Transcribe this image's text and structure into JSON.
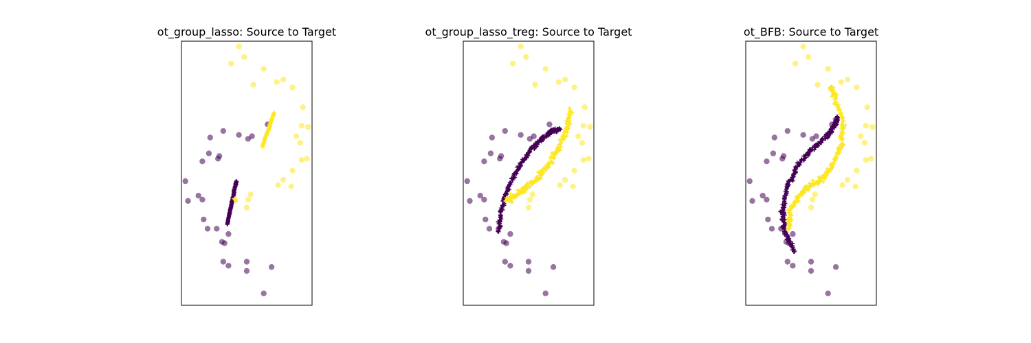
{
  "figure": {
    "background": "#ffffff",
    "point_colors": {
      "class_0": "#440154",
      "class_1": "#fde725"
    },
    "point_alpha": 0.55,
    "markers": {
      "target": "circle",
      "source_transported": "plus"
    }
  },
  "chart_data": [
    {
      "type": "scatter",
      "title": "ot_group_lasso: Source to Target",
      "xlim": [
        0,
        100
      ],
      "ylim": [
        0,
        200
      ],
      "grid": false,
      "target_points": {
        "class_1": [
          [
            44,
            196
          ],
          [
            48,
            188
          ],
          [
            38,
            183
          ],
          [
            63,
            179
          ],
          [
            55,
            167
          ],
          [
            73,
            169
          ],
          [
            78,
            171
          ],
          [
            85,
            165
          ],
          [
            93,
            150
          ],
          [
            92,
            136
          ],
          [
            97,
            135
          ],
          [
            88,
            128
          ],
          [
            91,
            123
          ],
          [
            96,
            111
          ],
          [
            92,
            110
          ],
          [
            85,
            102
          ],
          [
            78,
            95
          ],
          [
            84,
            90
          ],
          [
            74,
            91
          ],
          [
            53,
            84
          ],
          [
            51,
            80
          ],
          [
            50,
            74
          ]
        ],
        "class_0": [
          [
            66,
            137
          ],
          [
            32,
            132
          ],
          [
            44,
            129
          ],
          [
            51,
            126
          ],
          [
            54,
            128
          ],
          [
            22,
            127
          ],
          [
            21,
            115
          ],
          [
            29,
            113
          ],
          [
            16,
            109
          ],
          [
            28,
            111
          ],
          [
            3,
            94
          ],
          [
            13,
            83
          ],
          [
            5,
            79
          ],
          [
            16,
            80
          ],
          [
            17,
            65
          ],
          [
            20,
            58
          ],
          [
            27,
            58
          ],
          [
            36,
            54
          ],
          [
            31,
            48
          ],
          [
            33,
            47
          ],
          [
            32,
            33
          ],
          [
            36,
            30
          ],
          [
            50,
            33
          ],
          [
            69,
            29
          ],
          [
            50,
            26
          ],
          [
            63,
            9
          ]
        ]
      },
      "source_transported": {
        "class_1": [
          {
            "from": [
              62,
              120
            ],
            "to": [
              71,
              146
            ],
            "n": 60
          },
          {
            "from": [
              40,
              81
            ],
            "to": [
              42,
              79
            ],
            "n": 6
          }
        ],
        "class_0": [
          {
            "from": [
              35,
              61
            ],
            "to": [
              42,
              94
            ],
            "n": 80
          }
        ]
      }
    },
    {
      "type": "scatter",
      "title": "ot_group_lasso_treg: Source to Target",
      "xlim": [
        0,
        100
      ],
      "ylim": [
        0,
        200
      ],
      "grid": false,
      "target_points": {
        "class_1": [
          [
            44,
            196
          ],
          [
            48,
            188
          ],
          [
            38,
            183
          ],
          [
            63,
            179
          ],
          [
            55,
            167
          ],
          [
            73,
            169
          ],
          [
            78,
            171
          ],
          [
            85,
            165
          ],
          [
            93,
            150
          ],
          [
            92,
            136
          ],
          [
            97,
            135
          ],
          [
            88,
            128
          ],
          [
            91,
            123
          ],
          [
            96,
            111
          ],
          [
            92,
            110
          ],
          [
            85,
            102
          ],
          [
            78,
            95
          ],
          [
            84,
            90
          ],
          [
            74,
            91
          ],
          [
            53,
            84
          ],
          [
            51,
            80
          ],
          [
            50,
            74
          ]
        ],
        "class_0": [
          [
            66,
            137
          ],
          [
            32,
            132
          ],
          [
            44,
            129
          ],
          [
            51,
            126
          ],
          [
            54,
            128
          ],
          [
            22,
            127
          ],
          [
            21,
            115
          ],
          [
            29,
            113
          ],
          [
            16,
            109
          ],
          [
            28,
            111
          ],
          [
            3,
            94
          ],
          [
            13,
            83
          ],
          [
            5,
            79
          ],
          [
            16,
            80
          ],
          [
            17,
            65
          ],
          [
            20,
            58
          ],
          [
            27,
            58
          ],
          [
            36,
            54
          ],
          [
            31,
            48
          ],
          [
            33,
            47
          ],
          [
            32,
            33
          ],
          [
            36,
            30
          ],
          [
            50,
            33
          ],
          [
            69,
            29
          ],
          [
            50,
            26
          ],
          [
            63,
            9
          ]
        ]
      },
      "source_transported": {
        "class_1": [
          {
            "path": [
              [
                33,
                79
              ],
              [
                40,
                83
              ],
              [
                48,
                89
              ],
              [
                57,
                96
              ],
              [
                66,
                108
              ],
              [
                74,
                121
              ],
              [
                80,
                135
              ],
              [
                82,
                148
              ]
            ],
            "n": 180,
            "spread": 2.2
          }
        ],
        "class_0": [
          {
            "path": [
              [
                27,
                56
              ],
              [
                29,
                72
              ],
              [
                34,
                88
              ],
              [
                42,
                104
              ],
              [
                52,
                118
              ],
              [
                60,
                126
              ],
              [
                68,
                132
              ],
              [
                74,
                133
              ]
            ],
            "n": 200,
            "spread": 1.4
          }
        ]
      }
    },
    {
      "type": "scatter",
      "title": "ot_BFB: Source to Target",
      "xlim": [
        0,
        100
      ],
      "ylim": [
        0,
        200
      ],
      "grid": false,
      "target_points": {
        "class_1": [
          [
            44,
            196
          ],
          [
            48,
            188
          ],
          [
            38,
            183
          ],
          [
            63,
            179
          ],
          [
            55,
            167
          ],
          [
            73,
            169
          ],
          [
            78,
            171
          ],
          [
            85,
            165
          ],
          [
            93,
            150
          ],
          [
            92,
            136
          ],
          [
            97,
            135
          ],
          [
            88,
            128
          ],
          [
            91,
            123
          ],
          [
            96,
            111
          ],
          [
            92,
            110
          ],
          [
            85,
            102
          ],
          [
            78,
            95
          ],
          [
            84,
            90
          ],
          [
            74,
            91
          ],
          [
            53,
            84
          ],
          [
            51,
            80
          ],
          [
            50,
            74
          ]
        ],
        "class_0": [
          [
            66,
            137
          ],
          [
            32,
            132
          ],
          [
            44,
            129
          ],
          [
            51,
            126
          ],
          [
            54,
            128
          ],
          [
            22,
            127
          ],
          [
            21,
            115
          ],
          [
            29,
            113
          ],
          [
            16,
            109
          ],
          [
            28,
            111
          ],
          [
            3,
            94
          ],
          [
            13,
            83
          ],
          [
            5,
            79
          ],
          [
            16,
            80
          ],
          [
            17,
            65
          ],
          [
            20,
            58
          ],
          [
            27,
            58
          ],
          [
            36,
            54
          ],
          [
            31,
            48
          ],
          [
            33,
            47
          ],
          [
            32,
            33
          ],
          [
            36,
            30
          ],
          [
            50,
            33
          ],
          [
            69,
            29
          ],
          [
            50,
            26
          ],
          [
            63,
            9
          ]
        ]
      },
      "source_transported": {
        "class_1": [
          {
            "path": [
              [
                33,
                57
              ],
              [
                34,
                72
              ],
              [
                40,
                82
              ],
              [
                48,
                90
              ],
              [
                58,
                95
              ],
              [
                66,
                105
              ],
              [
                73,
                120
              ],
              [
                75,
                138
              ],
              [
                68,
                158
              ],
              [
                65,
                165
              ]
            ],
            "n": 220,
            "spread": 2.0
          }
        ],
        "class_0": [
          {
            "path": [
              [
                38,
                40
              ],
              [
                30,
                55
              ],
              [
                28,
                72
              ],
              [
                32,
                90
              ],
              [
                40,
                106
              ],
              [
                50,
                118
              ],
              [
                62,
                128
              ],
              [
                68,
                136
              ],
              [
                70,
                142
              ]
            ],
            "n": 230,
            "spread": 1.6
          }
        ]
      }
    }
  ]
}
